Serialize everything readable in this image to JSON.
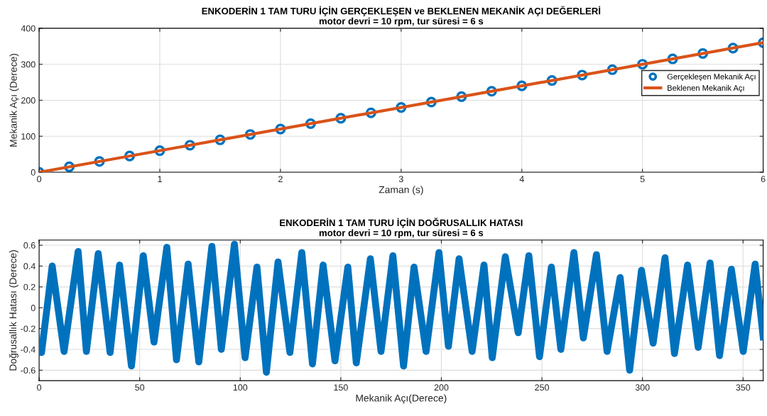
{
  "chart_data": [
    {
      "type": "scatter",
      "title": "ENKODERİN 1 TAM TURU İÇİN GERÇEKLEŞEN ve BEKLENEN MEKANİK AÇI DEĞERLERİ",
      "subtitle": "motor devri = 10 rpm, tur süresi = 6 s",
      "xlabel": "Zaman (s)",
      "ylabel": "Mekanik Açı (Derece)",
      "xlim": [
        0,
        6
      ],
      "xticks": [
        0,
        1,
        2,
        3,
        4,
        5,
        6
      ],
      "ylim": [
        0,
        400
      ],
      "yticks": [
        0,
        100,
        200,
        300,
        400
      ],
      "grid": true,
      "legend": "center right",
      "series": [
        {
          "name": "Gerçekleşen Mekanik Açı",
          "type": "scatter",
          "marker": "circle",
          "color": "#0072bd",
          "x": [
            0,
            0.25,
            0.5,
            0.75,
            1,
            1.25,
            1.5,
            1.75,
            2,
            2.25,
            2.5,
            2.75,
            3,
            3.25,
            3.5,
            3.75,
            4,
            4.25,
            4.5,
            4.75,
            5,
            5.25,
            5.5,
            5.75,
            6
          ],
          "values": [
            0,
            15,
            30,
            45,
            60,
            75,
            90,
            105,
            120,
            135,
            150,
            165,
            180,
            195,
            210,
            225,
            240,
            255,
            270,
            285,
            300,
            315,
            330,
            345,
            360
          ]
        },
        {
          "name": "Beklenen Mekanik Açı",
          "type": "line",
          "marker": "none",
          "line_style": "solid",
          "color": "#d95319",
          "x": [
            0,
            6
          ],
          "values": [
            0,
            360
          ]
        }
      ]
    },
    {
      "type": "line",
      "title": "ENKODERİN 1 TAM TURU İÇİN DOĞRUSALLIK HATASI",
      "subtitle": "motor devri = 10 rpm, tur süresi = 6 s",
      "xlabel": "Mekanik Açı(Derece)",
      "ylabel": "Doğrusallık Hatası (Derece)",
      "xlim": [
        0,
        360
      ],
      "xticks": [
        0,
        50,
        100,
        150,
        200,
        250,
        300,
        350
      ],
      "ylim": [
        -0.7,
        0.65
      ],
      "yticks": [
        -0.6,
        -0.4,
        -0.2,
        0,
        0.2,
        0.4,
        0.6
      ],
      "grid": true,
      "legend": false,
      "series": [
        {
          "color": "#0072bd",
          "marker": "circle",
          "line_style": "solid",
          "x": [
            0,
            1.2,
            6.5,
            12.4,
            19.4,
            23.5,
            29.4,
            35.3,
            40.0,
            45.9,
            51.8,
            57.1,
            63.5,
            68.3,
            74.1,
            79.4,
            85.9,
            90.6,
            97.1,
            102.4,
            108.3,
            113.0,
            118.8,
            124.7,
            130.6,
            135.9,
            141.2,
            147.1,
            153.5,
            157.7,
            164.7,
            170.0,
            175.9,
            181.2,
            186.4,
            192.4,
            198.8,
            203.5,
            208.8,
            215.3,
            221.2,
            225.3,
            231.8,
            238.2,
            243.5,
            248.8,
            254.7,
            259.4,
            265.9,
            270.6,
            277.1,
            282.4,
            288.9,
            293.6,
            299.5,
            305.3,
            311.2,
            315.9,
            322.4,
            327.7,
            333.6,
            338.3,
            344.2,
            350.1,
            356.0,
            360
          ],
          "values": [
            -0.35,
            -0.43,
            0.4,
            -0.42,
            0.54,
            -0.42,
            0.52,
            -0.43,
            0.41,
            -0.56,
            0.5,
            -0.33,
            0.58,
            -0.5,
            0.42,
            -0.52,
            0.59,
            -0.4,
            0.61,
            -0.48,
            0.39,
            -0.62,
            0.44,
            -0.43,
            0.53,
            -0.54,
            0.41,
            -0.51,
            0.39,
            -0.53,
            0.47,
            -0.42,
            0.5,
            -0.56,
            0.39,
            -0.42,
            0.53,
            -0.37,
            0.47,
            -0.42,
            0.41,
            -0.48,
            0.49,
            -0.24,
            0.5,
            -0.47,
            0.39,
            -0.4,
            0.53,
            -0.29,
            0.51,
            -0.42,
            0.29,
            -0.6,
            0.36,
            -0.34,
            0.48,
            -0.44,
            0.41,
            -0.38,
            0.43,
            -0.46,
            0.37,
            -0.42,
            0.42,
            -0.28
          ]
        }
      ]
    }
  ]
}
